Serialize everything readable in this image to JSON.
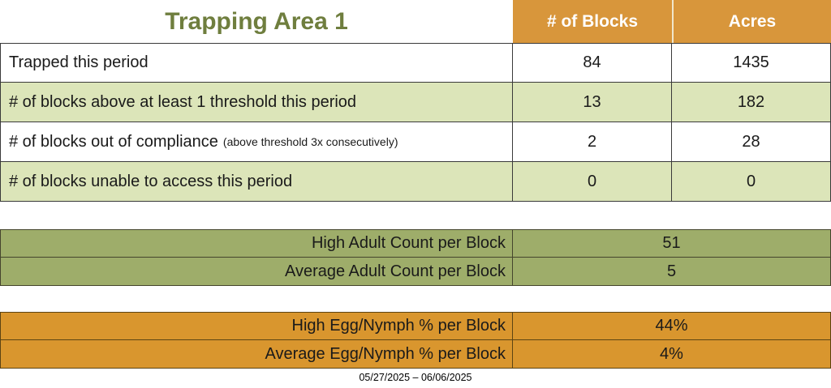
{
  "header": {
    "title": "Trapping Area 1",
    "columns": [
      "# of Blocks",
      "Acres"
    ]
  },
  "main_table": {
    "rows": [
      {
        "label": "Trapped this period",
        "note": "",
        "blocks": "84",
        "acres": "1435"
      },
      {
        "label": "# of blocks above at least 1 threshold this period",
        "note": "",
        "blocks": "13",
        "acres": "182"
      },
      {
        "label": "# of blocks out of compliance",
        "note": "(above threshold 3x consecutively)",
        "blocks": "2",
        "acres": "28"
      },
      {
        "label": "# of blocks unable to access this period",
        "note": "",
        "blocks": "0",
        "acres": "0"
      }
    ]
  },
  "adult_section": {
    "rows": [
      {
        "label": "High Adult Count per Block",
        "value": "51"
      },
      {
        "label": "Average Adult Count per Block",
        "value": "5"
      }
    ]
  },
  "egg_section": {
    "rows": [
      {
        "label": "High Egg/Nymph % per Block",
        "value": "44%"
      },
      {
        "label": "Average Egg/Nymph % per Block",
        "value": "4%"
      }
    ]
  },
  "footer": {
    "date_range": "05/27/2025 – 06/06/2025"
  },
  "colors": {
    "orange_header": "#D8963B",
    "orange_section": "#D9962E",
    "light_green": "#DCE5B9",
    "olive": "#9EAD6A",
    "title_green": "#6F7E3E"
  }
}
